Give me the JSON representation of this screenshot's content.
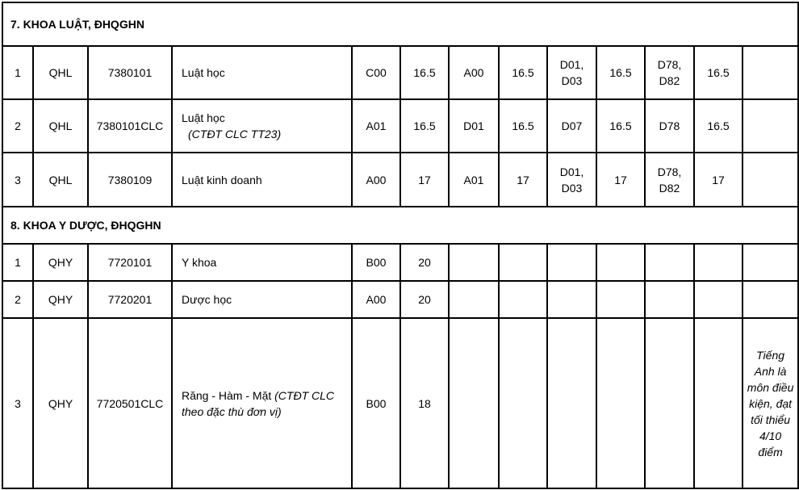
{
  "sections": [
    {
      "title": "7. KHOA LUẬT, ĐHQGHN",
      "rows": [
        {
          "stt": "1",
          "school": "QHL",
          "code": "7380101",
          "name": "Luật học",
          "name_note": "",
          "cells": [
            "C00",
            "16.5",
            "A00",
            "16.5",
            "D01,\nD03",
            "16.5",
            "D78,\nD82",
            "16.5"
          ],
          "note": ""
        },
        {
          "stt": "2",
          "school": "QHL",
          "code": "7380101CLC",
          "name": "Luật học",
          "name_note": "(CTĐT CLC TT23)",
          "cells": [
            "A01",
            "16.5",
            "D01",
            "16.5",
            "D07",
            "16.5",
            "D78",
            "16.5"
          ],
          "note": ""
        },
        {
          "stt": "3",
          "school": "QHL",
          "code": "7380109",
          "name": "Luật kinh doanh",
          "name_note": "",
          "cells": [
            "A00",
            "17",
            "A01",
            "17",
            "D01,\nD03",
            "17",
            "D78,\nD82",
            "17"
          ],
          "note": ""
        }
      ]
    },
    {
      "title": "8. KHOA Y DƯỢC, ĐHQGHN",
      "rows": [
        {
          "stt": "1",
          "school": "QHY",
          "code": "7720101",
          "name": "Y khoa",
          "name_note": "",
          "cells": [
            "B00",
            "20",
            "",
            "",
            "",
            "",
            "",
            ""
          ],
          "note": ""
        },
        {
          "stt": "2",
          "school": "QHY",
          "code": "7720201",
          "name": "Dược học",
          "name_note": "",
          "cells": [
            "A00",
            "20",
            "",
            "",
            "",
            "",
            "",
            ""
          ],
          "note": ""
        },
        {
          "stt": "3",
          "school": "QHY",
          "code": "7720501CLC",
          "name": "Răng - Hàm - Mặt",
          "name_note": "(CTĐT CLC theo đặc thù đơn vị)",
          "cells": [
            "B00",
            "18",
            "",
            "",
            "",
            "",
            "",
            ""
          ],
          "note": "Tiếng Anh là môn điều kiện, đạt tối thiểu 4/10 điểm"
        }
      ]
    }
  ]
}
